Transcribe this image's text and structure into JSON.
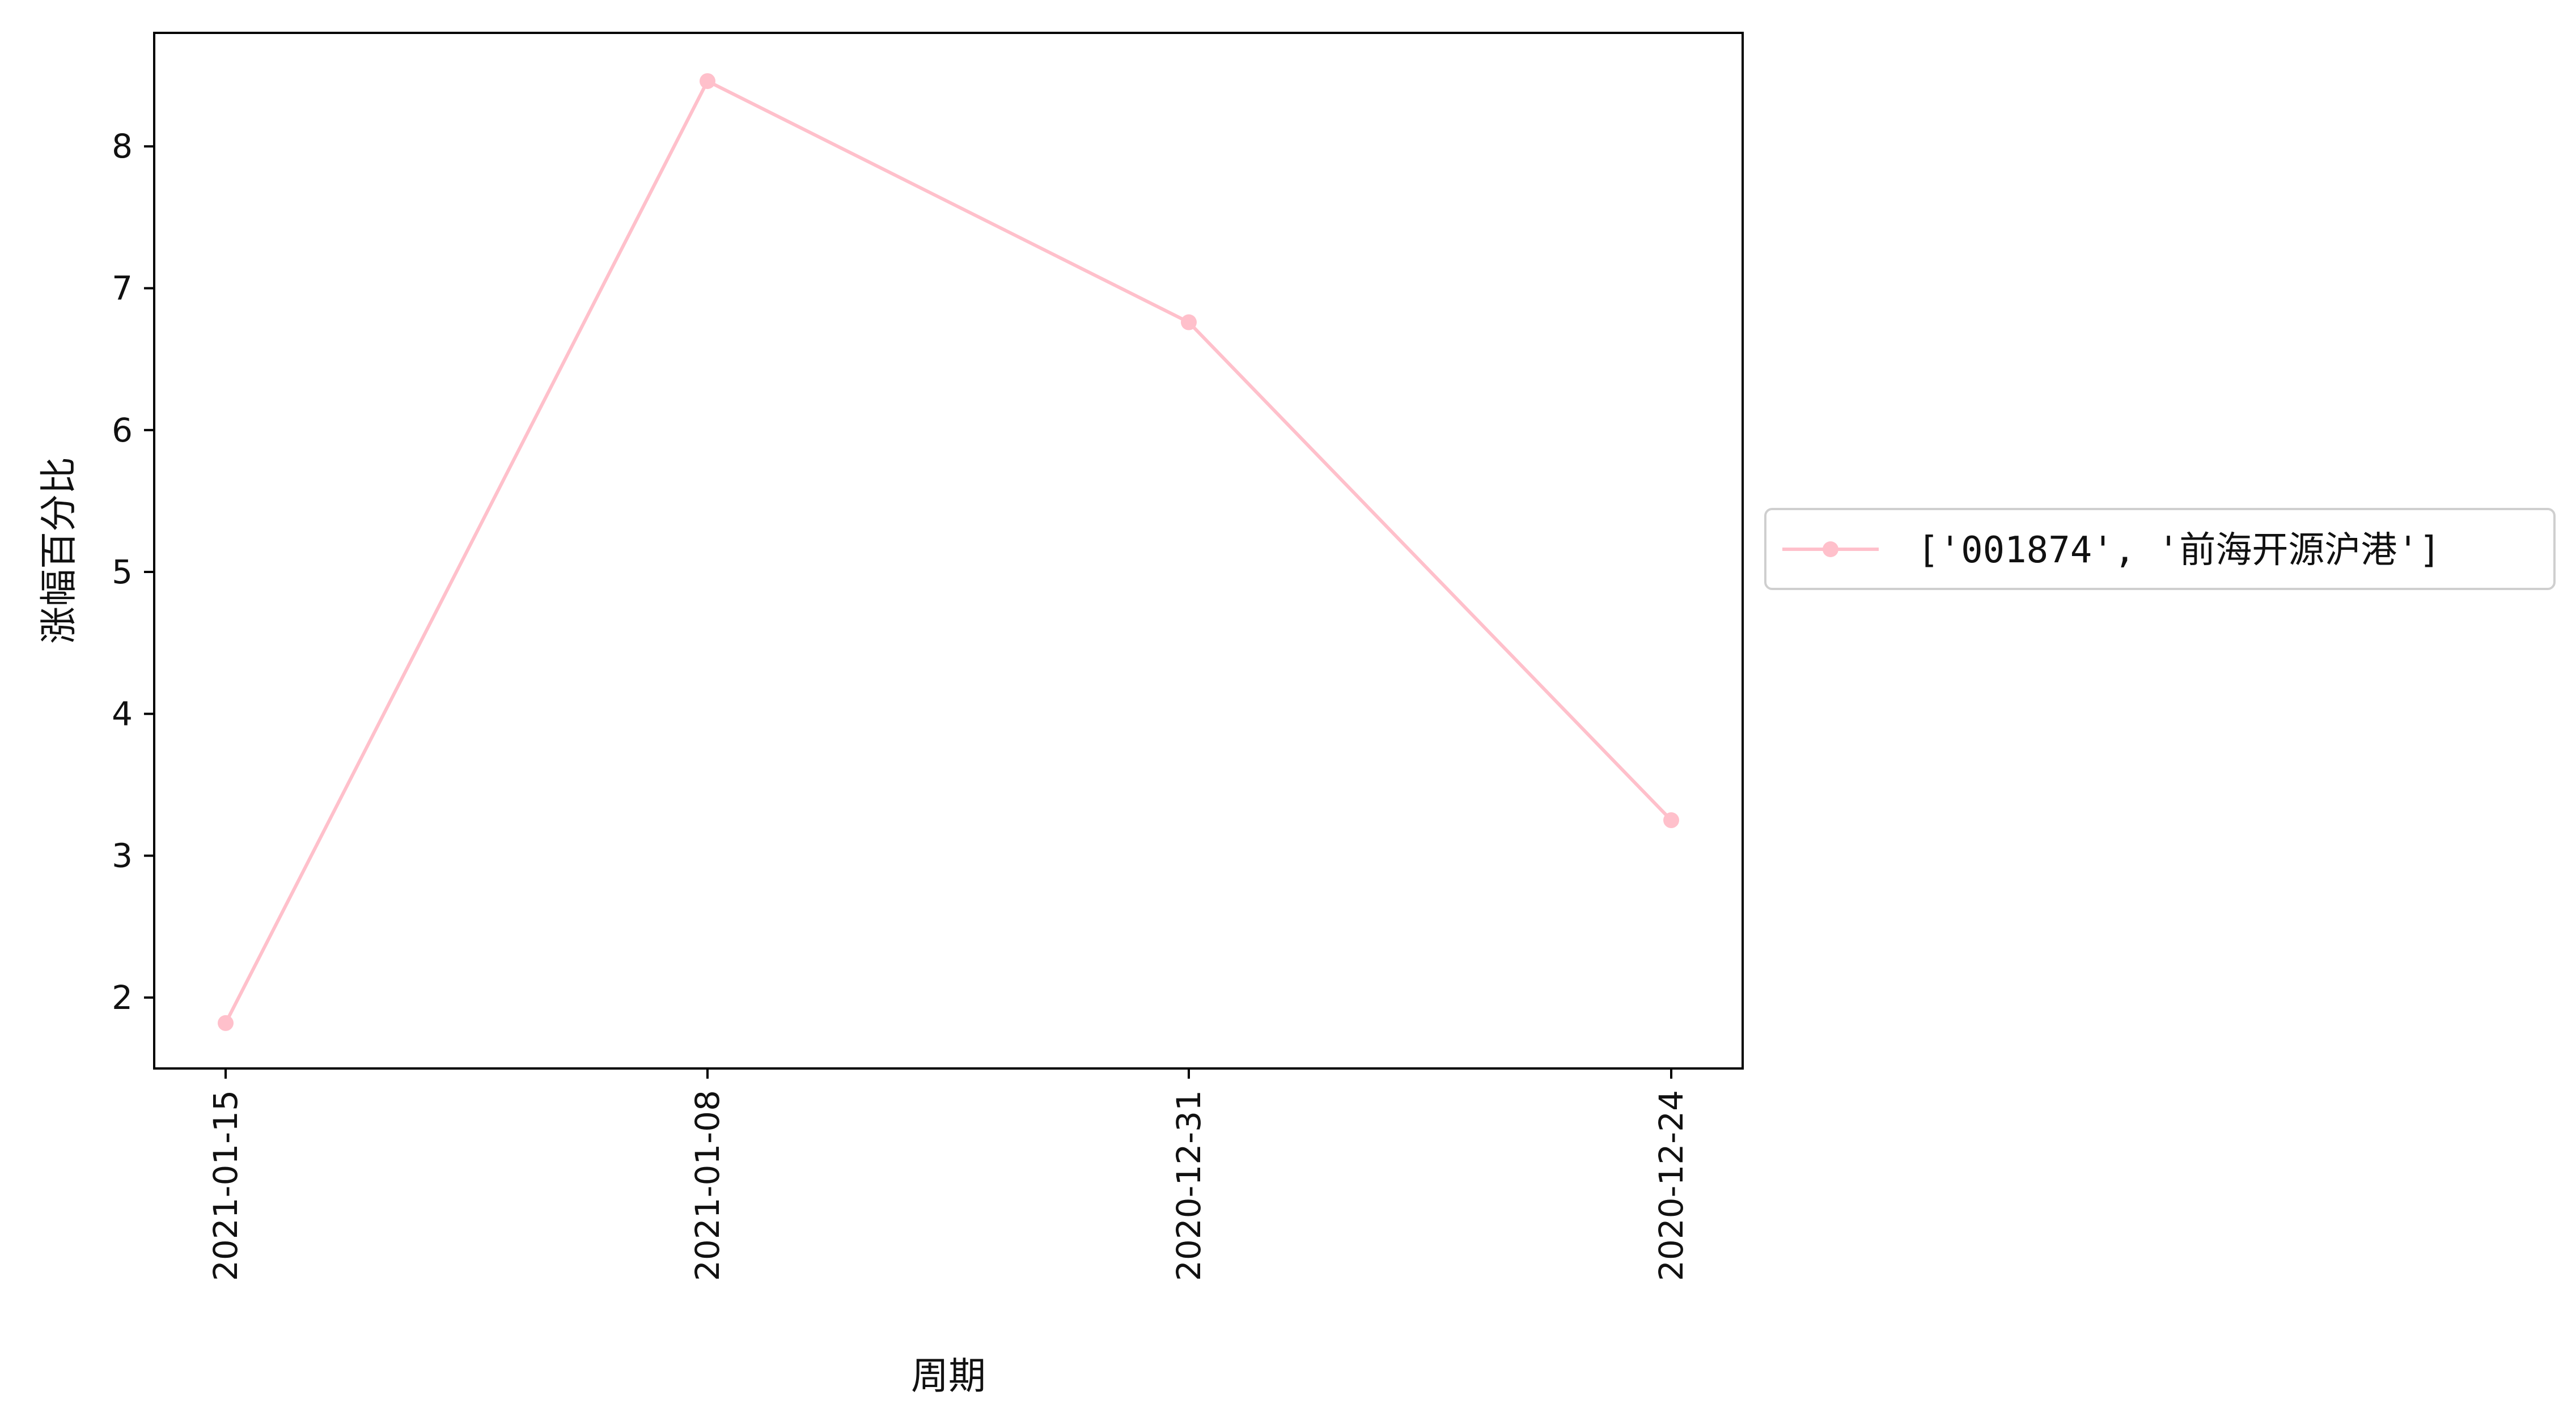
{
  "chart_data": {
    "type": "line",
    "title": "",
    "xlabel": "周期",
    "ylabel": "涨幅百分比",
    "categories": [
      "2021-01-15",
      "2021-01-08",
      "2020-12-31",
      "2020-12-24"
    ],
    "series": [
      {
        "name": "['001874', '前海开源沪港']",
        "values": [
          1.82,
          8.46,
          6.76,
          3.25
        ],
        "color": "#ffc0cb",
        "marker": "circle"
      }
    ],
    "ylim": [
      1.5,
      8.8
    ],
    "y_ticks": [
      2,
      3,
      4,
      5,
      6,
      7,
      8
    ],
    "grid": false,
    "legend_position": "right-outside",
    "x_tick_rotation": "vertical"
  }
}
